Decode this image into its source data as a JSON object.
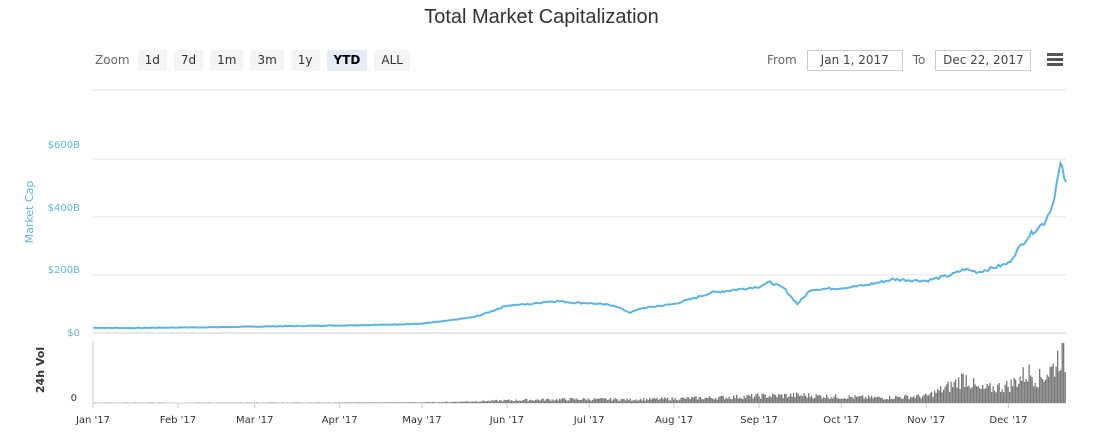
{
  "title": "Total Market Capitalization",
  "zoom": {
    "label": "Zoom",
    "buttons": [
      {
        "label": "1d",
        "active": false
      },
      {
        "label": "7d",
        "active": false
      },
      {
        "label": "1m",
        "active": false
      },
      {
        "label": "3m",
        "active": false
      },
      {
        "label": "1y",
        "active": false
      },
      {
        "label": "YTD",
        "active": true
      },
      {
        "label": "ALL",
        "active": false
      }
    ]
  },
  "range": {
    "from_label": "From",
    "from_value": "Jan 1, 2017",
    "to_label": "To",
    "to_value": "Dec 22, 2017"
  },
  "menu_icon": "hamburger-menu-icon",
  "colors": {
    "market_cap": "#5bb5e4",
    "volume": "#777777",
    "grid": "#e6e6e6",
    "text": "#333333"
  },
  "chart_data": [
    {
      "type": "line",
      "title": "Total Market Capitalization",
      "ylabel": "Market Cap",
      "yticks": [
        "$0",
        "$200B",
        "$400B",
        "$600B"
      ],
      "ylim": [
        0,
        700
      ],
      "y_unit": "billion USD",
      "grid": true,
      "series": [
        {
          "name": "Market Cap",
          "x": [
            "2017-01-01",
            "2017-01-15",
            "2017-02-01",
            "2017-02-15",
            "2017-03-01",
            "2017-03-15",
            "2017-04-01",
            "2017-04-15",
            "2017-05-01",
            "2017-05-10",
            "2017-05-20",
            "2017-05-25",
            "2017-06-01",
            "2017-06-10",
            "2017-06-15",
            "2017-06-20",
            "2017-06-25",
            "2017-07-01",
            "2017-07-10",
            "2017-07-16",
            "2017-07-20",
            "2017-08-01",
            "2017-08-10",
            "2017-08-15",
            "2017-08-20",
            "2017-09-01",
            "2017-09-05",
            "2017-09-10",
            "2017-09-15",
            "2017-09-20",
            "2017-10-01",
            "2017-10-10",
            "2017-10-20",
            "2017-11-01",
            "2017-11-10",
            "2017-11-15",
            "2017-11-20",
            "2017-12-01",
            "2017-12-05",
            "2017-12-08",
            "2017-12-10",
            "2017-12-14",
            "2017-12-17",
            "2017-12-20",
            "2017-12-22"
          ],
          "values": [
            18,
            17,
            19,
            20,
            22,
            24,
            26,
            28,
            32,
            42,
            55,
            70,
            95,
            100,
            108,
            110,
            105,
            103,
            95,
            70,
            85,
            100,
            125,
            140,
            145,
            160,
            175,
            155,
            100,
            150,
            155,
            165,
            185,
            180,
            200,
            220,
            210,
            240,
            295,
            330,
            350,
            380,
            440,
            580,
            520
          ]
        }
      ]
    },
    {
      "type": "bar",
      "ylabel": "24h Vol",
      "yticks": [
        "0"
      ],
      "xticks": [
        "Jan '17",
        "Feb '17",
        "Mar '17",
        "Apr '17",
        "May '17",
        "Jun '17",
        "Jul '17",
        "Aug '17",
        "Sep '17",
        "Oct '17",
        "Nov '17",
        "Dec '17"
      ],
      "series": [
        {
          "name": "24h Vol",
          "x": [
            "2017-01-01",
            "2017-02-01",
            "2017-03-01",
            "2017-04-01",
            "2017-05-01",
            "2017-05-15",
            "2017-06-01",
            "2017-06-15",
            "2017-07-01",
            "2017-07-15",
            "2017-08-01",
            "2017-08-15",
            "2017-09-01",
            "2017-09-15",
            "2017-10-01",
            "2017-10-15",
            "2017-11-01",
            "2017-11-10",
            "2017-11-15",
            "2017-11-20",
            "2017-12-01",
            "2017-12-08",
            "2017-12-12",
            "2017-12-17",
            "2017-12-20",
            "2017-12-22"
          ],
          "values": [
            0.3,
            0.3,
            0.4,
            0.5,
            0.7,
            1.5,
            3,
            4,
            4.5,
            4,
            5,
            6,
            8,
            9,
            7,
            6,
            8,
            20,
            30,
            15,
            20,
            35,
            28,
            40,
            60,
            45
          ]
        }
      ]
    }
  ]
}
